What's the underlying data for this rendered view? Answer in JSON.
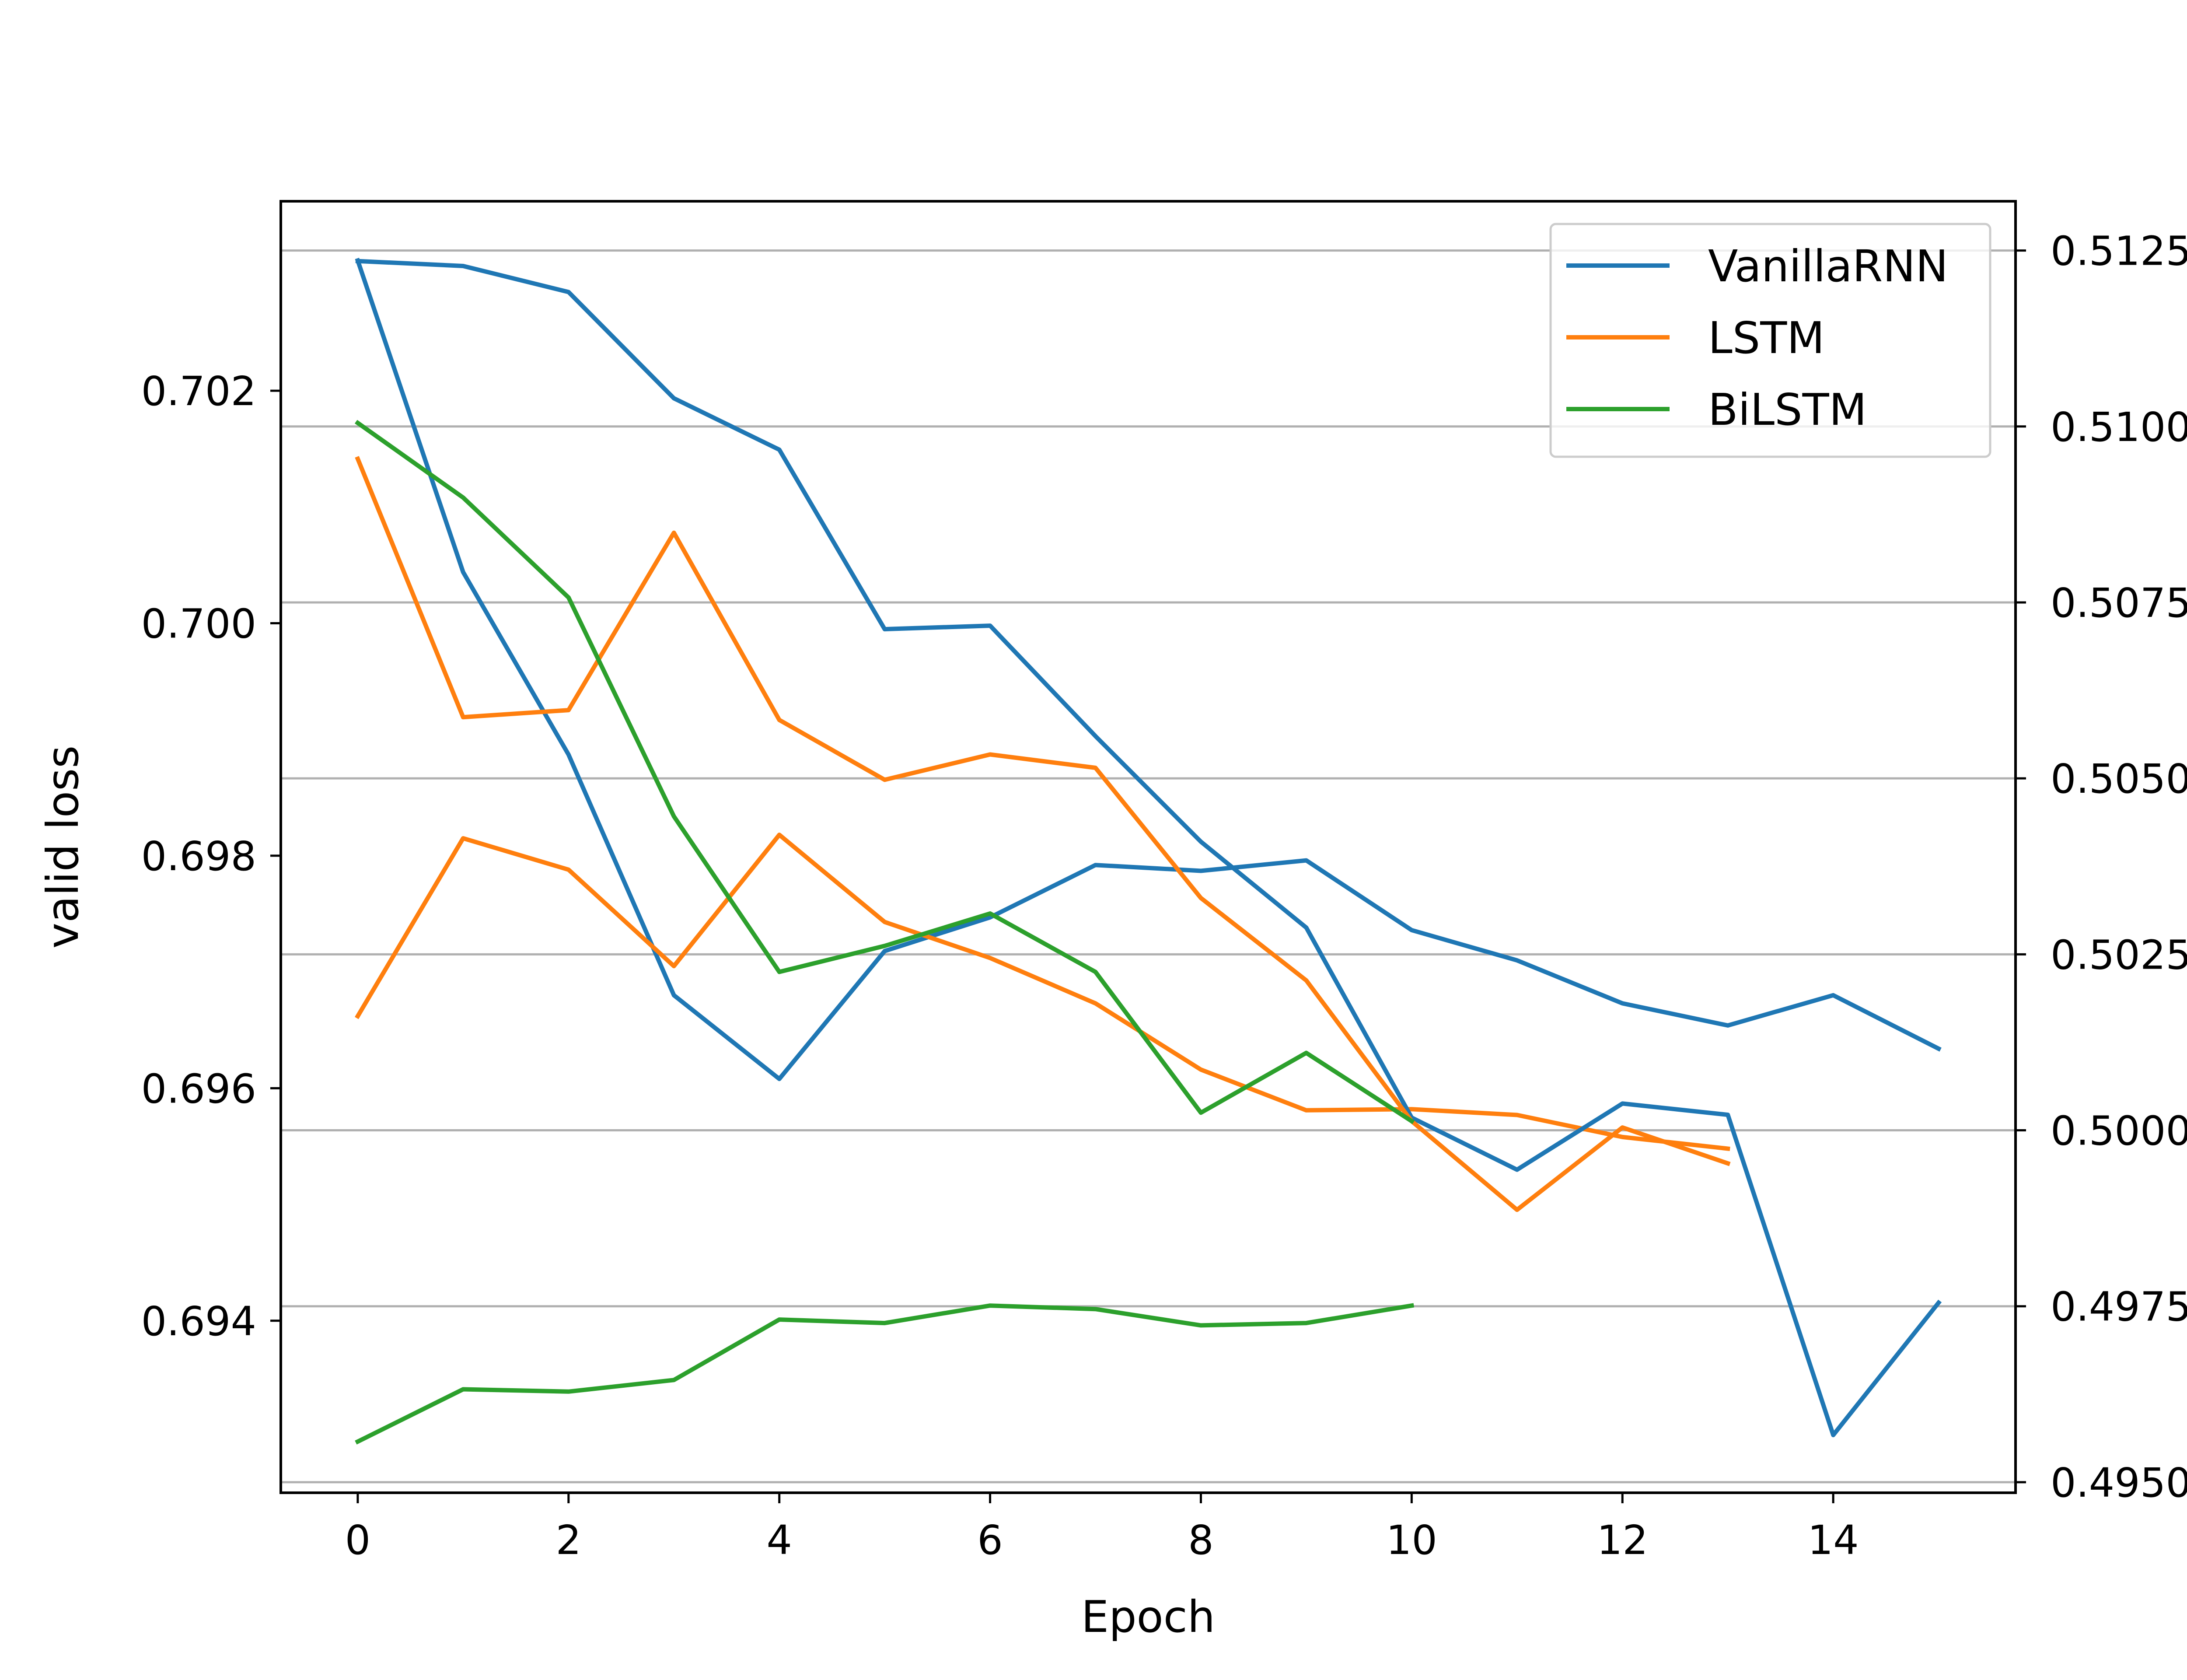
{
  "chart_data": {
    "type": "line",
    "xlabel": "Epoch",
    "ylabel_left": "valid loss",
    "ylabel_right": "",
    "x_ticks": [
      "0",
      "2",
      "4",
      "6",
      "8",
      "10",
      "12",
      "14"
    ],
    "x_tick_values": [
      0,
      2,
      4,
      6,
      8,
      10,
      12,
      14
    ],
    "left_ticks": [
      "0.694",
      "0.696",
      "0.698",
      "0.700",
      "0.702"
    ],
    "left_tick_values": [
      0.694,
      0.696,
      0.698,
      0.7,
      0.702
    ],
    "right_ticks": [
      "0.4950",
      "0.4975",
      "0.5000",
      "0.5025",
      "0.5050",
      "0.5075",
      "0.5100",
      "0.5125"
    ],
    "right_tick_values": [
      0.495,
      0.4975,
      0.5,
      0.5025,
      0.505,
      0.5075,
      0.51,
      0.5125
    ],
    "xlim": [
      -0.73,
      15.73
    ],
    "ylim_left": [
      0.69252,
      0.70363
    ],
    "ylim_right": [
      0.49485,
      0.5132
    ],
    "grid": "horizontal (right axis ticks)",
    "legend_position": "top-right",
    "colors": {
      "VanillaRNN": "#1f77b4",
      "LSTM": "#ff7f0e",
      "BiLSTM": "#2ca02c",
      "grid": "#b0b0b0"
    },
    "series": [
      {
        "name": "VanillaRNN",
        "axis": "left",
        "color": "#1f77b4",
        "x": [
          0,
          1,
          2,
          3,
          4,
          5,
          6,
          7,
          8,
          9,
          10,
          11,
          12,
          13,
          14,
          15
        ],
        "values": [
          0.70312,
          0.70044,
          0.69887,
          0.6968,
          0.69608,
          0.69718,
          0.69747,
          0.69792,
          0.69787,
          0.69796,
          0.69736,
          0.6971,
          0.69673,
          0.69654,
          0.6968,
          0.69634
        ]
      },
      {
        "name": "LSTM",
        "axis": "left",
        "color": "#ff7f0e",
        "x": [
          0,
          1,
          2,
          3,
          4,
          5,
          6,
          7,
          8,
          9,
          10,
          11,
          12,
          13
        ],
        "values": [
          0.69662,
          0.69815,
          0.69788,
          0.69705,
          0.69818,
          0.69743,
          0.69712,
          0.69673,
          0.69616,
          0.69581,
          0.69582,
          0.69577,
          0.69558,
          0.69548
        ]
      },
      {
        "name": "BiLSTM",
        "axis": "left",
        "color": "#2ca02c",
        "x": [
          0,
          1,
          2,
          3,
          4,
          5,
          6,
          7,
          8,
          9,
          10
        ],
        "values": [
          0.69296,
          0.69341,
          0.69339,
          0.69349,
          0.69401,
          0.69398,
          0.69413,
          0.6941,
          0.69396,
          0.69398,
          0.69413
        ]
      },
      {
        "name": "VanillaRNN",
        "axis": "right",
        "color": "#1f77b4",
        "x": [
          0,
          1,
          2,
          3,
          4,
          5,
          6,
          7,
          8,
          9,
          10,
          11,
          12,
          13,
          14,
          15
        ],
        "values": [
          0.51235,
          0.51228,
          0.51191,
          0.5104,
          0.50967,
          0.50712,
          0.50717,
          0.5056,
          0.5041,
          0.50288,
          0.50018,
          0.49944,
          0.50038,
          0.50022,
          0.49567,
          0.49755
        ]
      },
      {
        "name": "LSTM",
        "axis": "right",
        "color": "#ff7f0e",
        "x": [
          0,
          1,
          2,
          3,
          4,
          5,
          6,
          7,
          8,
          9,
          10,
          11,
          12,
          13
        ],
        "values": [
          0.50954,
          0.50587,
          0.50597,
          0.50849,
          0.50583,
          0.50498,
          0.50534,
          0.50515,
          0.5033,
          0.50213,
          0.50013,
          0.49887,
          0.50004,
          0.49953
        ]
      },
      {
        "name": "BiLSTM",
        "axis": "right",
        "color": "#2ca02c",
        "x": [
          0,
          1,
          2,
          3,
          4,
          5,
          6,
          7,
          8,
          9,
          10
        ],
        "values": [
          0.51005,
          0.50899,
          0.50757,
          0.50446,
          0.50225,
          0.50262,
          0.50308,
          0.50225,
          0.50025,
          0.5011,
          0.50013
        ]
      }
    ]
  }
}
